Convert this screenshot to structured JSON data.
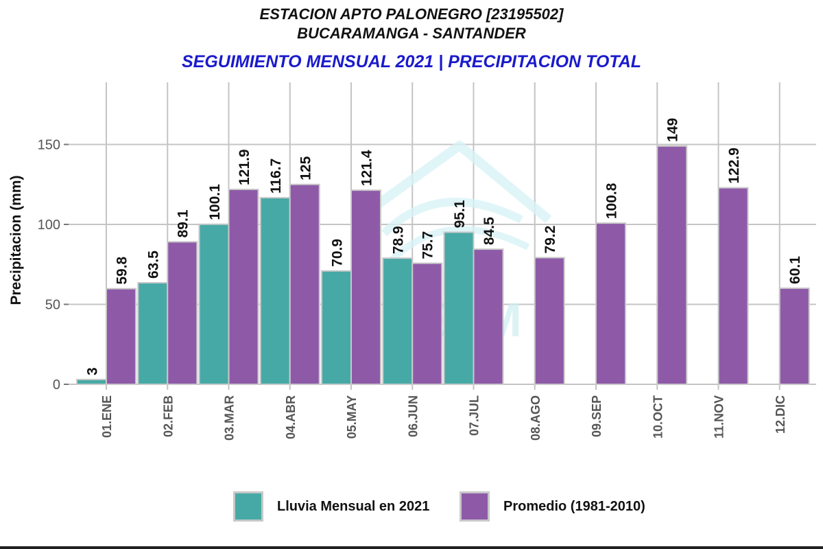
{
  "header": {
    "station": "ESTACION APTO PALONEGRO [23195502]",
    "location": "BUCARAMANGA - SANTANDER",
    "subtitle": "SEGUIMIENTO MENSUAL 2021 | PRECIPITACION TOTAL"
  },
  "watermark": {
    "text": "IDEAM"
  },
  "colors": {
    "rain_2021": "#47a9a6",
    "average": "#8e5aa8",
    "grid": "#c4c4c4",
    "title_blue": "#1a1acc"
  },
  "chart_data": {
    "type": "bar",
    "title": "SEGUIMIENTO MENSUAL 2021 | PRECIPITACION TOTAL",
    "xlabel": "",
    "ylabel": "Precipitacion (mm)",
    "ylim": [
      0,
      180
    ],
    "yticks": [
      0,
      50,
      100,
      150
    ],
    "categories": [
      "01.ENE",
      "02.FEB",
      "03.MAR",
      "04.ABR",
      "05.MAY",
      "06.JUN",
      "07.JUL",
      "08.AGO",
      "09.SEP",
      "10.OCT",
      "11.NOV",
      "12.DIC"
    ],
    "series": [
      {
        "name": "Lluvia Mensual en 2021",
        "values": [
          3,
          63.5,
          100.1,
          116.7,
          70.9,
          78.9,
          95.1,
          null,
          null,
          null,
          null,
          null
        ],
        "labels": [
          "3",
          "63.5",
          "100.1",
          "116.7",
          "70.9",
          "78.9",
          "95.1",
          null,
          null,
          null,
          null,
          null
        ]
      },
      {
        "name": "Promedio (1981-2010)",
        "values": [
          59.8,
          89.1,
          121.9,
          125,
          121.4,
          75.7,
          84.5,
          79.2,
          100.8,
          149,
          122.9,
          60.1
        ],
        "labels": [
          "59.8",
          "89.1",
          "121.9",
          "125",
          "121.4",
          "75.7",
          "84.5",
          "79.2",
          "100.8",
          "149",
          "122.9",
          "60.1"
        ]
      }
    ],
    "legend_position": "bottom"
  }
}
